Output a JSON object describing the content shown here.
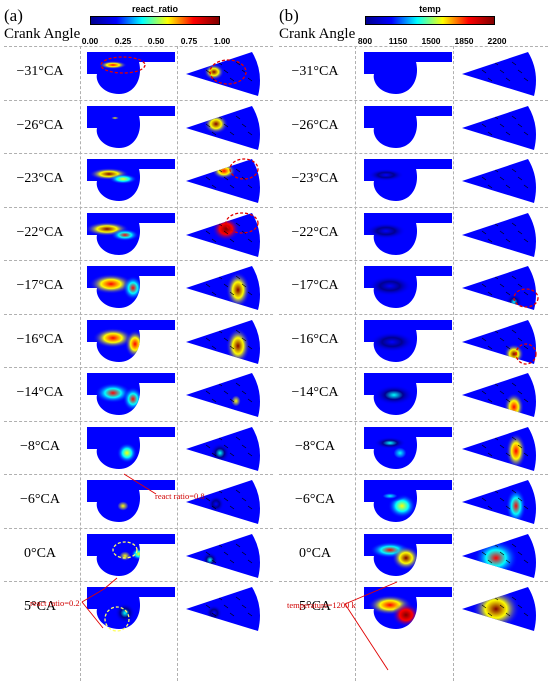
{
  "panels": [
    {
      "label": "(a)",
      "colorbar_title": "react_ratio",
      "colorbar_ticks": [
        "0.00",
        "0.25",
        "0.50",
        "0.75",
        "1.00"
      ],
      "scheme": "ratio"
    },
    {
      "label": "(b)",
      "colorbar_title": "temp",
      "colorbar_ticks": [
        "800",
        "1150",
        "1500",
        "1850",
        "2200"
      ],
      "scheme": "temp"
    }
  ],
  "crank_angle_title": "Crank Angle",
  "rows": [
    "−31°CA",
    "−26°CA",
    "−23°CA",
    "−22°CA",
    "−17°CA",
    "−16°CA",
    "−14°CA",
    "−8°CA",
    "−6°CA",
    "0°CA",
    "5°CA"
  ],
  "annotations": {
    "react_08": "react ratio=0.8",
    "react_02": "react ratio=0.2",
    "temp_1200": "temperature=1200 k"
  },
  "colors": {
    "jet": [
      "#00008f",
      "#0000ff",
      "#00ffff",
      "#ffff00",
      "#ff0000",
      "#800000"
    ],
    "annotation_red": "#e00000",
    "dashed_gray": "#b0b0b0",
    "highlight_yellow": "#ffff66"
  }
}
